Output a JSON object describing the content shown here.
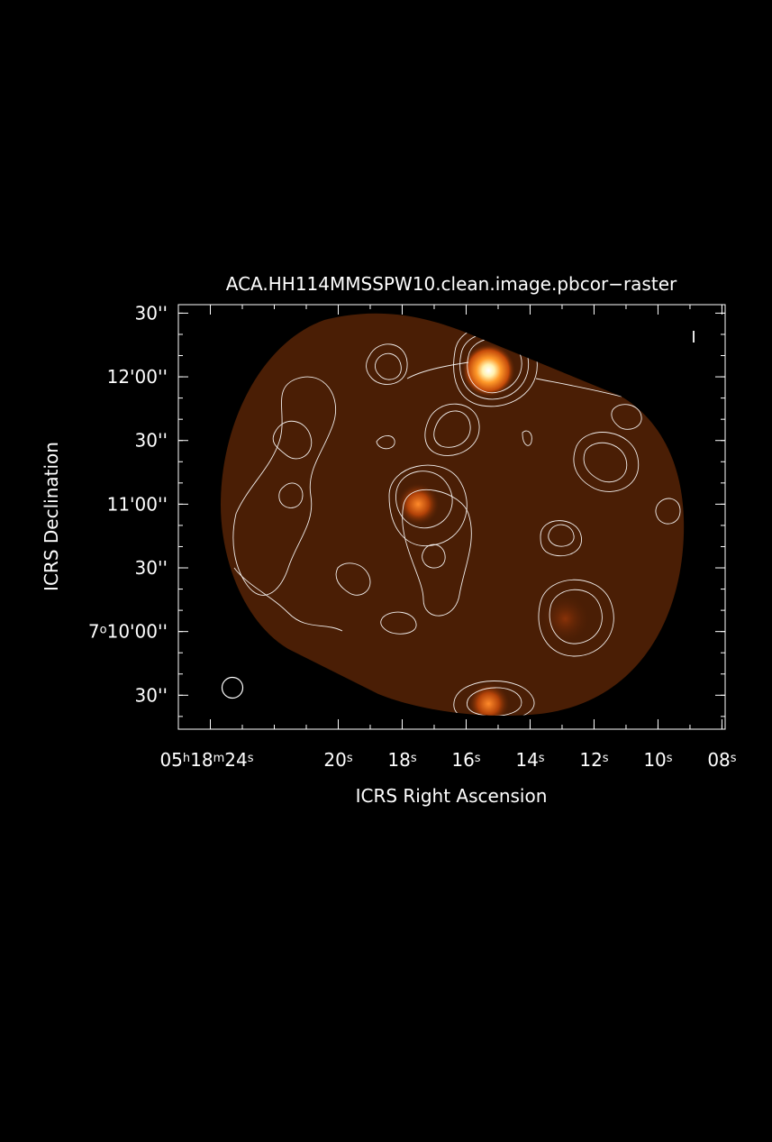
{
  "chart_data": {
    "type": "heatmap",
    "title": "ACA.HH114MMSSPW10.clean.image.pbcor−raster",
    "xlabel": "ICRS Right Ascension",
    "ylabel": "ICRS Declination",
    "stokes_label": "I",
    "colormap": "hot",
    "background_color": "#000000",
    "axis_color": "#ffffff",
    "field_color": "#4a1e05",
    "x_ticks": [
      {
        "ra_seconds": 24,
        "label": "05h18m24s",
        "parts": [
          "05",
          "h",
          "18",
          "m",
          "24",
          "s"
        ]
      },
      {
        "ra_seconds": 20,
        "label": "20s",
        "parts": [
          "20",
          "s"
        ]
      },
      {
        "ra_seconds": 18,
        "label": "18s",
        "parts": [
          "18",
          "s"
        ]
      },
      {
        "ra_seconds": 16,
        "label": "16s",
        "parts": [
          "16",
          "s"
        ]
      },
      {
        "ra_seconds": 14,
        "label": "14s",
        "parts": [
          "14",
          "s"
        ]
      },
      {
        "ra_seconds": 12,
        "label": "12s",
        "parts": [
          "12",
          "s"
        ]
      },
      {
        "ra_seconds": 10,
        "label": "10s",
        "parts": [
          "10",
          "s"
        ]
      },
      {
        "ra_seconds": 8,
        "label": "08s",
        "parts": [
          "08",
          "s"
        ]
      }
    ],
    "y_ticks": [
      {
        "dec_arcsec": 30,
        "label": "30''",
        "parts": [
          "30''"
        ]
      },
      {
        "dec_arcsec": 0,
        "label": "12'00''",
        "parts": [
          "12'00''"
        ]
      },
      {
        "dec_arcsec": -30,
        "label": "30''",
        "parts": [
          "30''"
        ]
      },
      {
        "dec_arcsec": -60,
        "label": "11'00''",
        "parts": [
          "11'00''"
        ]
      },
      {
        "dec_arcsec": -90,
        "label": "30''",
        "parts": [
          "30''"
        ]
      },
      {
        "dec_arcsec": -120,
        "label": "7o10'00''",
        "parts": [
          "7",
          "o",
          "10'00''"
        ]
      },
      {
        "dec_arcsec": -150,
        "label": "30''",
        "parts": [
          "30''"
        ]
      }
    ],
    "xlim_ra_seconds": [
      25.0,
      7.9
    ],
    "ylim_dec_arcsec_rel_7d12m": [
      -166,
      34
    ],
    "sources": [
      {
        "name": "",
        "ra_s": 15.3,
        "dec_rel": 3,
        "peak": 1.0
      },
      {
        "name": "",
        "ra_s": 17.5,
        "dec_rel": -60,
        "peak": 0.45
      },
      {
        "name": "",
        "ra_s": 15.3,
        "dec_rel": -154,
        "peak": 0.6
      },
      {
        "name": "",
        "ra_s": 12.9,
        "dec_rel": -114,
        "peak": 0.25
      }
    ],
    "beam_ellipse": {
      "present": true
    },
    "grid": false
  }
}
